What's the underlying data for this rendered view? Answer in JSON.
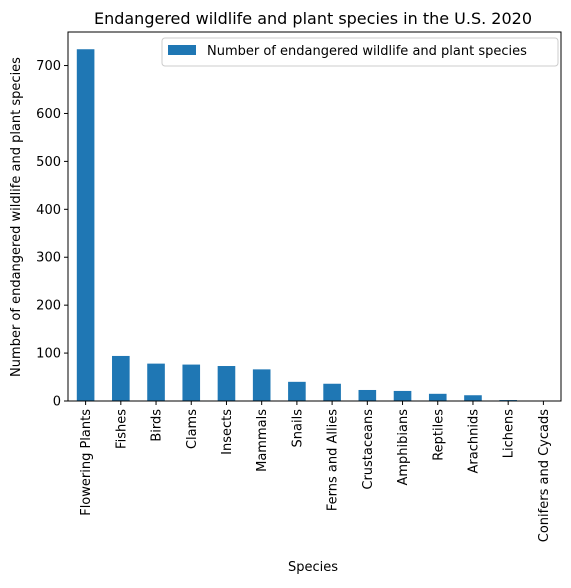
{
  "chart_data": {
    "type": "bar",
    "title": "Endangered wildlife and plant species in the U.S. 2020",
    "xlabel": "Species",
    "ylabel": "Number of endangered wildlife and plant species",
    "categories": [
      "Flowering Plants",
      "Fishes",
      "Birds",
      "Clams",
      "Insects",
      "Mammals",
      "Snails",
      "Ferns and Allies",
      "Crustaceans",
      "Amphibians",
      "Reptiles",
      "Arachnids",
      "Lichens",
      "Conifers and Cycads"
    ],
    "series": [
      {
        "name": "Number of endangered wildlife and plant species",
        "values": [
          734,
          94,
          78,
          76,
          73,
          66,
          40,
          36,
          23,
          21,
          15,
          12,
          2,
          1
        ],
        "color": "#1f77b4"
      }
    ],
    "ylim": [
      0,
      770
    ],
    "yticks": [
      0,
      100,
      200,
      300,
      400,
      500,
      600,
      700
    ],
    "legend_position": "top-right",
    "grid": false
  }
}
